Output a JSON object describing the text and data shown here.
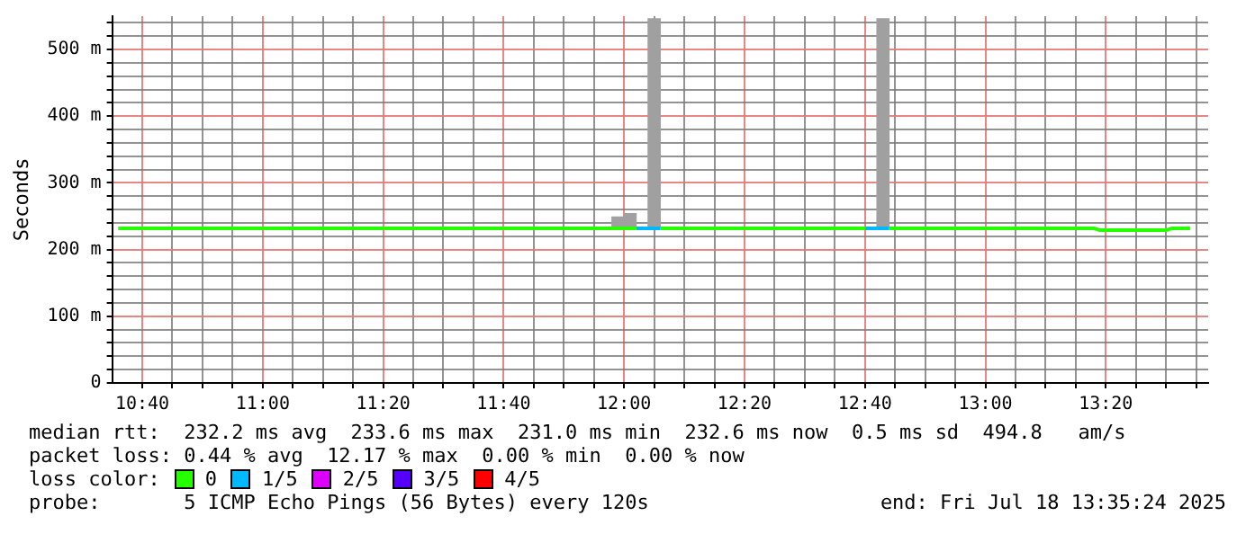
{
  "chart_data": {
    "type": "line",
    "ylabel": "Seconds",
    "xlim": [
      "2025-07-18T10:35",
      "2025-07-18T13:37"
    ],
    "ylim": [
      0,
      550
    ],
    "xticks": [
      {
        "value": "2025-07-18T10:40",
        "label": "10:40"
      },
      {
        "value": "2025-07-18T10:45",
        "label": null
      },
      {
        "value": "2025-07-18T10:50",
        "label": null
      },
      {
        "value": "2025-07-18T10:55",
        "label": null
      },
      {
        "value": "2025-07-18T11:00",
        "label": "11:00"
      },
      {
        "value": "2025-07-18T11:05",
        "label": null
      },
      {
        "value": "2025-07-18T11:10",
        "label": null
      },
      {
        "value": "2025-07-18T11:15",
        "label": null
      },
      {
        "value": "2025-07-18T11:20",
        "label": "11:20"
      },
      {
        "value": "2025-07-18T11:25",
        "label": null
      },
      {
        "value": "2025-07-18T11:30",
        "label": null
      },
      {
        "value": "2025-07-18T11:35",
        "label": null
      },
      {
        "value": "2025-07-18T11:40",
        "label": "11:40"
      },
      {
        "value": "2025-07-18T11:45",
        "label": null
      },
      {
        "value": "2025-07-18T11:50",
        "label": null
      },
      {
        "value": "2025-07-18T11:55",
        "label": null
      },
      {
        "value": "2025-07-18T12:00",
        "label": "12:00"
      },
      {
        "value": "2025-07-18T12:05",
        "label": null
      },
      {
        "value": "2025-07-18T12:10",
        "label": null
      },
      {
        "value": "2025-07-18T12:15",
        "label": null
      },
      {
        "value": "2025-07-18T12:20",
        "label": "12:20"
      },
      {
        "value": "2025-07-18T12:25",
        "label": null
      },
      {
        "value": "2025-07-18T12:30",
        "label": null
      },
      {
        "value": "2025-07-18T12:35",
        "label": null
      },
      {
        "value": "2025-07-18T12:40",
        "label": "12:40"
      },
      {
        "value": "2025-07-18T12:45",
        "label": null
      },
      {
        "value": "2025-07-18T12:50",
        "label": null
      },
      {
        "value": "2025-07-18T12:55",
        "label": null
      },
      {
        "value": "2025-07-18T13:00",
        "label": "13:00"
      },
      {
        "value": "2025-07-18T13:05",
        "label": null
      },
      {
        "value": "2025-07-18T13:10",
        "label": null
      },
      {
        "value": "2025-07-18T13:15",
        "label": null
      },
      {
        "value": "2025-07-18T13:20",
        "label": "13:20"
      },
      {
        "value": "2025-07-18T13:25",
        "label": null
      },
      {
        "value": "2025-07-18T13:30",
        "label": null
      },
      {
        "value": "2025-07-18T13:35",
        "label": null
      }
    ],
    "yticks": [
      {
        "value": 0,
        "label": "0"
      },
      {
        "value": 20,
        "label": null
      },
      {
        "value": 40,
        "label": null
      },
      {
        "value": 60,
        "label": null
      },
      {
        "value": 80,
        "label": null
      },
      {
        "value": 100,
        "label": "100 m"
      },
      {
        "value": 120,
        "label": null
      },
      {
        "value": 140,
        "label": null
      },
      {
        "value": 160,
        "label": null
      },
      {
        "value": 180,
        "label": null
      },
      {
        "value": 200,
        "label": "200 m"
      },
      {
        "value": 220,
        "label": null
      },
      {
        "value": 240,
        "label": null
      },
      {
        "value": 260,
        "label": null
      },
      {
        "value": 280,
        "label": null
      },
      {
        "value": 300,
        "label": "300 m"
      },
      {
        "value": 320,
        "label": null
      },
      {
        "value": 340,
        "label": null
      },
      {
        "value": 360,
        "label": null
      },
      {
        "value": 380,
        "label": null
      },
      {
        "value": 400,
        "label": "400 m"
      },
      {
        "value": 420,
        "label": null
      },
      {
        "value": 440,
        "label": null
      },
      {
        "value": 460,
        "label": null
      },
      {
        "value": 480,
        "label": null
      },
      {
        "value": 500,
        "label": "500 m"
      },
      {
        "value": 520,
        "label": null
      },
      {
        "value": 540,
        "label": null
      }
    ],
    "grid": true,
    "legend": "bottom",
    "legend_title": "loss color:",
    "marker": "none",
    "line_style": "solid",
    "series": [
      {
        "type": "bar",
        "color": "#a0a0a0",
        "x": [
          "2025-07-18T11:59",
          "2025-07-18T12:01",
          "2025-07-18T12:05",
          "2025-07-18T12:43"
        ],
        "base": [
          232,
          232,
          232,
          232
        ],
        "values": [
          17,
          22,
          314,
          314
        ]
      },
      {
        "name": "0",
        "color": "#26ff00",
        "x": [
          "2025-07-18T10:36",
          "2025-07-18T12:02",
          "2025-07-18T12:03",
          "2025-07-18T12:06",
          "2025-07-18T12:40",
          "2025-07-18T12:41",
          "2025-07-18T12:44",
          "2025-07-18T13:18",
          "2025-07-18T13:19",
          "2025-07-18T13:30",
          "2025-07-18T13:31",
          "2025-07-18T13:34"
        ],
        "values": [
          232,
          232,
          null,
          232,
          232,
          null,
          232,
          232,
          229,
          229,
          232,
          232
        ]
      },
      {
        "name": "1/5",
        "color": "#00b8ff",
        "x": [
          "2025-07-18T12:02",
          "2025-07-18T12:06",
          "2025-07-18T12:07",
          "2025-07-18T12:40",
          "2025-07-18T12:44"
        ],
        "values": [
          232,
          232,
          null,
          232,
          232
        ]
      },
      {
        "name": "2/5",
        "color": "#dd00ff"
      },
      {
        "name": "3/5",
        "color": "#5500ff"
      },
      {
        "name": "4/5",
        "color": "#ff0000"
      }
    ],
    "annotations": [
      "median rtt:  232.2 ms avg  233.6 ms max  231.0 ms min  232.6 ms now  0.5 ms sd  494.8   am/s",
      "packet loss: 0.44 % avg  12.17 % max  0.00 % min  0.00 % now",
      "probe:       5 ICMP Echo Pings (56 Bytes) every 120s",
      "end: Fri Jul 18 13:35:24 2025"
    ]
  }
}
